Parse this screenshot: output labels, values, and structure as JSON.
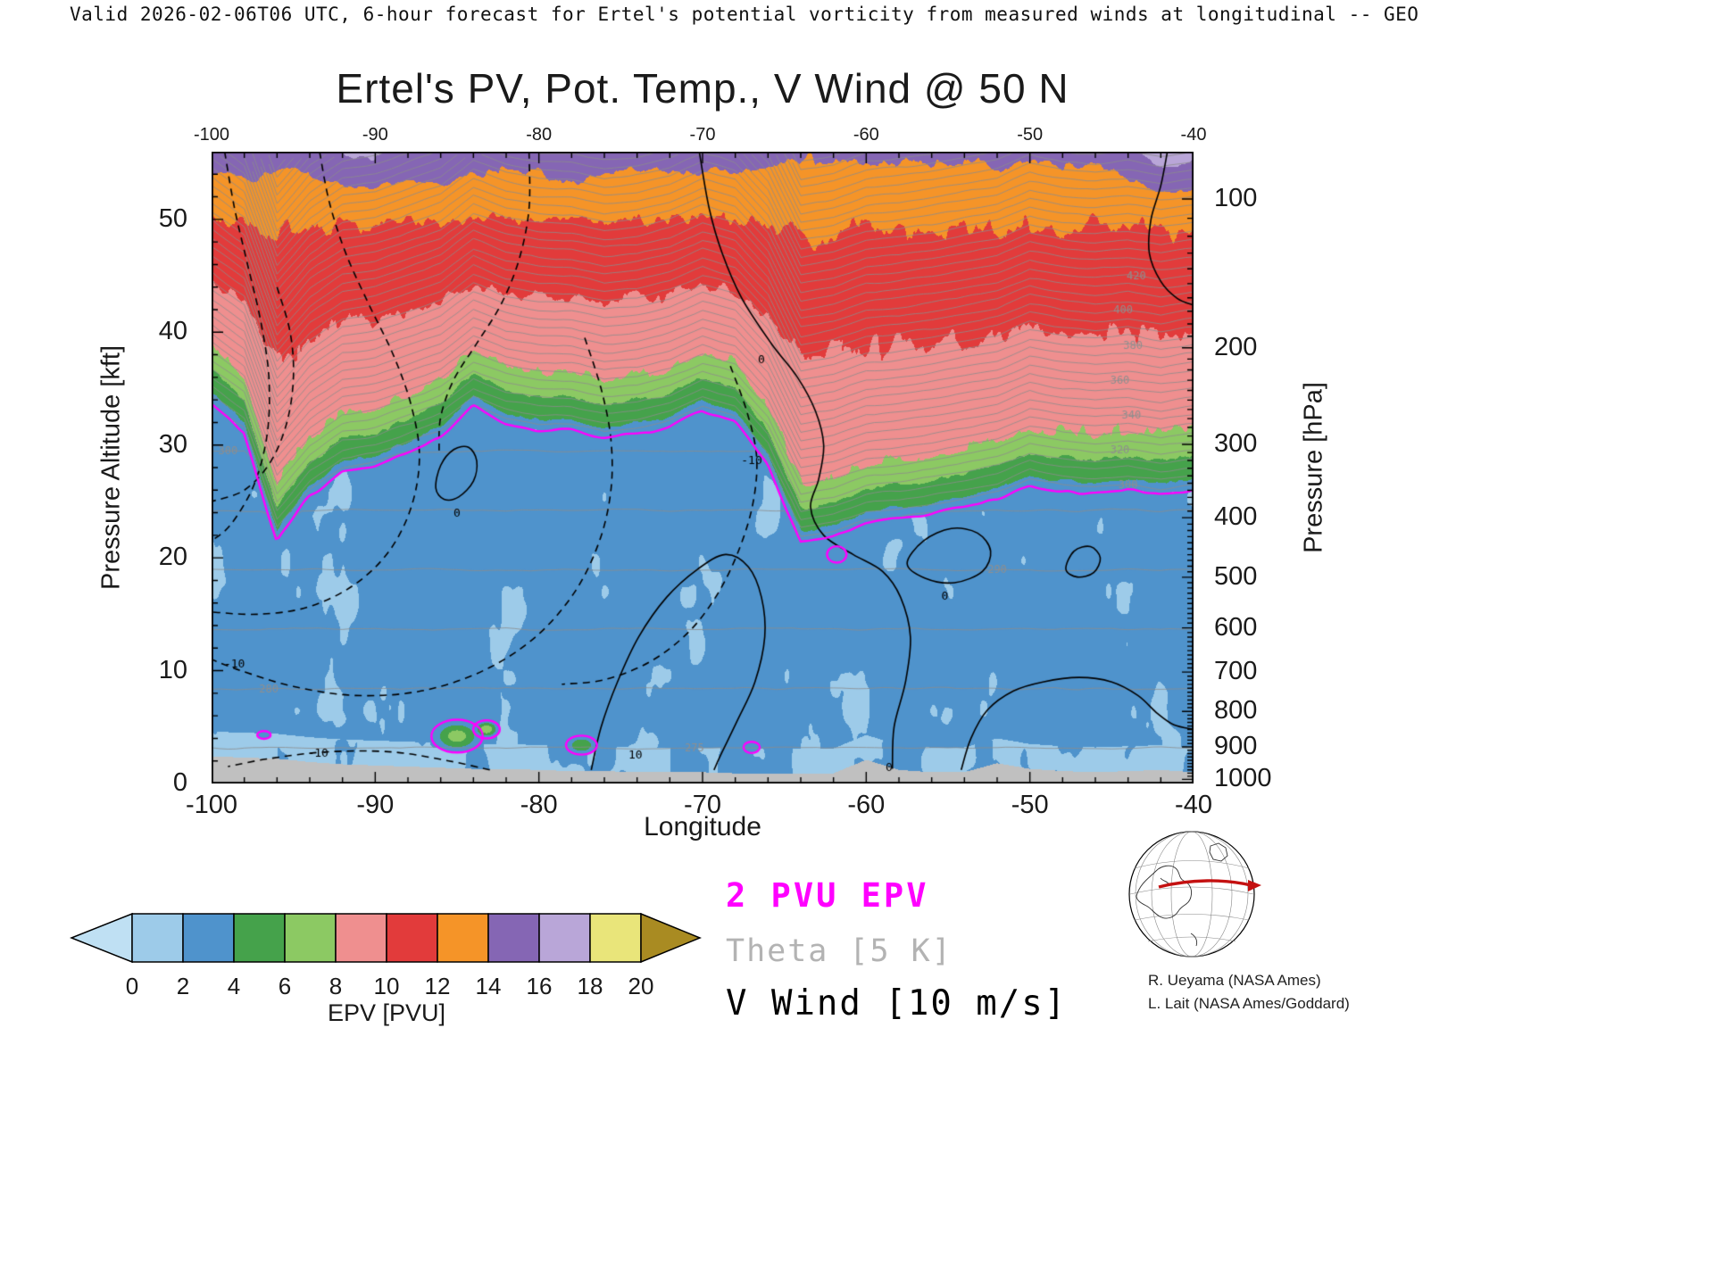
{
  "header": {
    "text": "Valid 2026-02-06T06 UTC, 6-hour forecast for Ertel's potential vorticity from measured winds at longitudinal -- GEO"
  },
  "title": "Ertel's PV, Pot. Temp., V Wind @ 50 N",
  "axes": {
    "x_label": "Longitude",
    "y_left_label": "Pressure Altitude [kft]",
    "y_right_label": "Pressure [hPa]",
    "x_range": [
      -100,
      -40
    ],
    "y_range_kft": [
      0,
      56
    ],
    "x_ticks": [
      -100,
      -90,
      -80,
      -70,
      -60,
      -50,
      -40
    ],
    "x_minor_step": 2,
    "y_left_ticks": [
      0,
      10,
      20,
      30,
      40,
      50
    ],
    "y_left_minor_step": 2,
    "y_right_ticks": [
      100,
      200,
      300,
      400,
      500,
      600,
      700,
      800,
      900,
      1000
    ]
  },
  "colorbar": {
    "label": "EPV [PVU]",
    "ticks": [
      0,
      2,
      4,
      6,
      8,
      10,
      12,
      14,
      16,
      18,
      20
    ],
    "colors": [
      "#9dcbe9",
      "#4f93cc",
      "#45a24b",
      "#8cc963",
      "#ef8f8f",
      "#e23b3b",
      "#f59428",
      "#8566b4",
      "#b9a6d8",
      "#e9e57a"
    ],
    "under_color": "#bfe0f3",
    "over_color": "#a98b22"
  },
  "legend": [
    {
      "label": "2 PVU EPV",
      "color": "#ff00ff"
    },
    {
      "label": "Theta [5 K]",
      "color": "#b3b3b3"
    },
    {
      "label": "V Wind [10 m/s]",
      "color": "#000000"
    }
  ],
  "credits": [
    "R. Ueyama (NASA Ames)",
    "L. Lait (NASA Ames/Goddard)"
  ],
  "map_inset": {
    "indicator_color": "#c41111"
  },
  "chart_data": {
    "type": "heatmap",
    "title": "Ertel's PV, Pot. Temp., V Wind @ 50 N",
    "field": "Ertel potential vorticity [PVU], filled contours every 2 PVU from 0 to 20",
    "x_range": [
      -100,
      -40
    ],
    "y_range_kft": [
      0,
      56
    ],
    "contour_interval_theta_K": 5,
    "contour_interval_vwind_ms": 10,
    "terrain_color": "#c0c0c0",
    "tropopause_2pvu": {
      "lons": [
        -100,
        -98,
        -96,
        -94,
        -92,
        -90,
        -88,
        -86,
        -84,
        -82,
        -80,
        -78,
        -76,
        -74,
        -72,
        -70,
        -68,
        -66,
        -64,
        -62,
        -60,
        -58,
        -56,
        -54,
        -52,
        -50,
        -48,
        -46,
        -44,
        -42,
        -40
      ],
      "kft": [
        33.5,
        31.0,
        21.5,
        25.5,
        27.8,
        28.3,
        29.5,
        30.7,
        33.3,
        32.0,
        31.4,
        31.3,
        30.6,
        30.9,
        31.7,
        33.2,
        32.2,
        28.5,
        21.4,
        22.0,
        23.2,
        23.5,
        24.0,
        24.6,
        25.2,
        26.6,
        26.0,
        25.7,
        26.0,
        25.5,
        26.0
      ]
    },
    "terrain_kft": {
      "lons": [
        -100,
        -98,
        -96,
        -94,
        -92,
        -90,
        -88,
        -86,
        -84,
        -82,
        -80,
        -78,
        -76,
        -74,
        -72,
        -70,
        -68,
        -66,
        -64,
        -62,
        -60,
        -58,
        -56,
        -54,
        -52,
        -50,
        -48,
        -46,
        -44,
        -42,
        -40
      ],
      "kft": [
        2.4,
        2.3,
        2.2,
        1.9,
        1.7,
        1.6,
        1.5,
        1.4,
        1.3,
        1.3,
        1.2,
        1.1,
        1.1,
        1.0,
        1.0,
        1.0,
        0.9,
        0.9,
        0.9,
        0.9,
        2.1,
        1.2,
        1.0,
        1.0,
        1.8,
        1.3,
        1.1,
        1.0,
        1.1,
        1.2,
        1.0
      ]
    },
    "pv_anomalies": [
      {
        "lon": -85.0,
        "kft": 4.2,
        "rx": 1.4,
        "ry": 1.3,
        "pv": 7.0
      },
      {
        "lon": -83.2,
        "kft": 4.8,
        "rx": 0.7,
        "ry": 0.7,
        "pv": 7.6
      },
      {
        "lon": -77.4,
        "kft": 3.4,
        "rx": 0.9,
        "ry": 0.8,
        "pv": 6.0
      },
      {
        "lon": -96.8,
        "kft": 4.3,
        "rx": 0.6,
        "ry": 0.5,
        "pv": 3.2
      },
      {
        "lon": -67.0,
        "kft": 3.2,
        "rx": 0.6,
        "ry": 0.6,
        "pv": 4.0
      },
      {
        "lon": -61.8,
        "kft": 20.3,
        "rx": 0.9,
        "ry": 1.1,
        "pv": 3.1
      }
    ],
    "stratosphere": {
      "pv_at_52kft": 12.6,
      "green_band_depth_kft": 5,
      "top_boosts": [
        {
          "lon": -91.0,
          "sigma": 3.0,
          "amp": 1.9
        },
        {
          "lon": -86.0,
          "sigma": 1.5,
          "amp": 1.0
        },
        {
          "lon": -78.0,
          "sigma": 1.5,
          "amp": 1.1
        },
        {
          "lon": -41.5,
          "sigma": 2.4,
          "amp": 2.9
        },
        {
          "lon": -97.5,
          "sigma": 1.2,
          "amp": 0.8
        }
      ]
    },
    "theta": {
      "surface_K": 272,
      "trop_lapse_K_per_kft": 0.95,
      "strat_lapse_K_per_kft": 6.45,
      "levels_start": 270,
      "levels_end": 520,
      "step": 5,
      "labels": [
        [
          420,
          -43.5
        ],
        [
          400,
          -44.3
        ],
        [
          380,
          -43.7
        ],
        [
          360,
          -44.5
        ],
        [
          340,
          -43.8
        ],
        [
          320,
          -44.5
        ],
        [
          300,
          -44.0
        ],
        [
          300,
          -99.0
        ],
        [
          280,
          -96.5
        ],
        [
          275,
          -70.5
        ],
        [
          290,
          -52.0
        ]
      ]
    },
    "wind_contours": [
      {
        "value": 0,
        "style": "solid",
        "closed": false,
        "label": "0",
        "label_pos": [
          -66.4,
          37.6
        ],
        "points": [
          [
            -70.2,
            56
          ],
          [
            -69.6,
            51
          ],
          [
            -68.8,
            47
          ],
          [
            -67.6,
            43
          ],
          [
            -65.8,
            39
          ],
          [
            -64.2,
            36
          ],
          [
            -63.1,
            33
          ],
          [
            -62.6,
            30
          ],
          [
            -62.9,
            27
          ],
          [
            -63.4,
            24.5
          ],
          [
            -62.6,
            22
          ],
          [
            -60.8,
            20.3
          ],
          [
            -59.0,
            18.8
          ],
          [
            -57.9,
            16.5
          ],
          [
            -57.3,
            13
          ],
          [
            -57.6,
            9
          ],
          [
            -58.3,
            5
          ],
          [
            -58.4,
            1.3
          ]
        ]
      },
      {
        "value": 10,
        "style": "solid",
        "closed": false,
        "label": "10",
        "label_pos": [
          -74.1,
          2.5
        ],
        "points": [
          [
            -76.8,
            1.2
          ],
          [
            -76.2,
            5
          ],
          [
            -75.2,
            9
          ],
          [
            -73.9,
            13
          ],
          [
            -72.2,
            16.5
          ],
          [
            -70.3,
            19
          ],
          [
            -68.6,
            20.3
          ],
          [
            -67.2,
            19.2
          ],
          [
            -66.4,
            16.5
          ],
          [
            -66.2,
            13
          ],
          [
            -66.8,
            9
          ],
          [
            -67.9,
            5.5
          ],
          [
            -68.9,
            2.5
          ],
          [
            -69.3,
            1.2
          ]
        ]
      },
      {
        "value": 0,
        "style": "solid",
        "closed": true,
        "label": "0",
        "label_pos": [
          -85.0,
          24.0
        ],
        "points": [
          [
            -86.3,
            26.2
          ],
          [
            -86.0,
            28.2
          ],
          [
            -85.2,
            29.6
          ],
          [
            -84.3,
            29.8
          ],
          [
            -83.8,
            28.6
          ],
          [
            -84.0,
            26.8
          ],
          [
            -84.9,
            25.4
          ],
          [
            -85.8,
            25.2
          ]
        ]
      },
      {
        "value": 0,
        "style": "solid",
        "closed": true,
        "label": "0",
        "label_pos": [
          -55.2,
          16.6
        ],
        "points": [
          [
            -57.5,
            19.5
          ],
          [
            -56.5,
            21.5
          ],
          [
            -54.8,
            22.6
          ],
          [
            -53.2,
            22.2
          ],
          [
            -52.4,
            20.6
          ],
          [
            -52.9,
            18.8
          ],
          [
            -54.6,
            17.8
          ],
          [
            -56.4,
            18.2
          ]
        ]
      },
      {
        "value": 0,
        "style": "solid",
        "closed": true,
        "points": [
          [
            -47.8,
            19.0
          ],
          [
            -47.3,
            20.6
          ],
          [
            -46.3,
            21.0
          ],
          [
            -45.7,
            20.0
          ],
          [
            -46.1,
            18.7
          ],
          [
            -47.1,
            18.3
          ]
        ]
      },
      {
        "value": 0,
        "style": "solid",
        "closed": false,
        "label": "0",
        "label_pos": [
          -58.6,
          1.4
        ],
        "points": [
          [
            -54.2,
            1.2
          ],
          [
            -53.6,
            4
          ],
          [
            -52.6,
            6.5
          ],
          [
            -51.0,
            8.2
          ],
          [
            -49.2,
            9.0
          ],
          [
            -47.0,
            9.4
          ],
          [
            -45.0,
            9.0
          ],
          [
            -43.4,
            7.8
          ],
          [
            -42.2,
            6.2
          ],
          [
            -41.2,
            5.2
          ],
          [
            -40.0,
            4.8
          ]
        ]
      },
      {
        "value": 0,
        "style": "solid",
        "closed": false,
        "points": [
          [
            -41.6,
            56
          ],
          [
            -42.0,
            53
          ],
          [
            -42.6,
            50
          ],
          [
            -42.7,
            47
          ],
          [
            -42.0,
            44.5
          ],
          [
            -41.0,
            43
          ],
          [
            -40.0,
            42.4
          ]
        ]
      },
      {
        "value": -10,
        "style": "dashed",
        "closed": false,
        "points": [
          [
            -99.2,
            56
          ],
          [
            -98.6,
            51
          ],
          [
            -97.8,
            46
          ],
          [
            -97.0,
            41
          ],
          [
            -96.5,
            36
          ],
          [
            -96.6,
            31
          ],
          [
            -97.4,
            26.5
          ],
          [
            -98.8,
            23
          ],
          [
            -100,
            21.5
          ]
        ]
      },
      {
        "value": -10,
        "style": "dashed",
        "closed": false,
        "points": [
          [
            -93.4,
            56
          ],
          [
            -92.8,
            51.5
          ],
          [
            -91.8,
            47
          ],
          [
            -90.4,
            42.5
          ],
          [
            -88.9,
            38
          ],
          [
            -87.8,
            33.5
          ],
          [
            -87.3,
            29
          ],
          [
            -87.8,
            24.5
          ],
          [
            -89.2,
            20.5
          ],
          [
            -91.4,
            17.5
          ],
          [
            -94.2,
            15.6
          ],
          [
            -97.2,
            15.0
          ],
          [
            -100,
            15.2
          ]
        ]
      },
      {
        "value": -20,
        "style": "dashed",
        "closed": false,
        "points": [
          [
            -96.0,
            44
          ],
          [
            -95.2,
            40
          ],
          [
            -95.0,
            36
          ],
          [
            -95.4,
            32
          ],
          [
            -96.4,
            28.5
          ],
          [
            -98.0,
            26
          ],
          [
            -100,
            25
          ]
        ]
      },
      {
        "value": -10,
        "style": "dashed",
        "closed": false,
        "points": [
          [
            -80.6,
            56
          ],
          [
            -80.6,
            51
          ],
          [
            -81.2,
            46.5
          ],
          [
            -82.3,
            42.5
          ],
          [
            -83.8,
            39
          ],
          [
            -85.2,
            35.8
          ],
          [
            -86.0,
            32.5
          ],
          [
            -86.1,
            29.5
          ]
        ]
      },
      {
        "value": -10,
        "style": "dashed",
        "closed": false,
        "label": "-10",
        "label_pos": [
          -98.6,
          10.6
        ],
        "points": [
          [
            -77.2,
            39.5
          ],
          [
            -76.2,
            35
          ],
          [
            -75.6,
            30.5
          ],
          [
            -75.6,
            26
          ],
          [
            -76.3,
            21.5
          ],
          [
            -77.8,
            17
          ],
          [
            -80.2,
            13
          ],
          [
            -83.4,
            10
          ],
          [
            -87.2,
            8.2
          ],
          [
            -91.2,
            7.8
          ],
          [
            -95.0,
            8.6
          ],
          [
            -98.2,
            10
          ],
          [
            -100,
            11
          ]
        ]
      },
      {
        "value": -10,
        "style": "dashed",
        "closed": false,
        "label": "-10",
        "label_pos": [
          -93.5,
          2.7
        ],
        "points": [
          [
            -83.0,
            1.2
          ],
          [
            -85.5,
            2.0
          ],
          [
            -89.0,
            2.8
          ],
          [
            -93.0,
            2.8
          ],
          [
            -96.5,
            2.2
          ],
          [
            -99.0,
            1.5
          ]
        ]
      },
      {
        "value": -10,
        "style": "dashed",
        "closed": false,
        "label": "-10",
        "label_pos": [
          -67.0,
          28.6
        ],
        "points": [
          [
            -68.3,
            37
          ],
          [
            -67.3,
            33
          ],
          [
            -66.7,
            29
          ],
          [
            -66.9,
            25
          ],
          [
            -67.7,
            21
          ],
          [
            -69.0,
            17
          ],
          [
            -70.8,
            13.5
          ],
          [
            -73.2,
            10.8
          ],
          [
            -76.0,
            9.2
          ],
          [
            -78.6,
            8.8
          ]
        ]
      }
    ]
  }
}
